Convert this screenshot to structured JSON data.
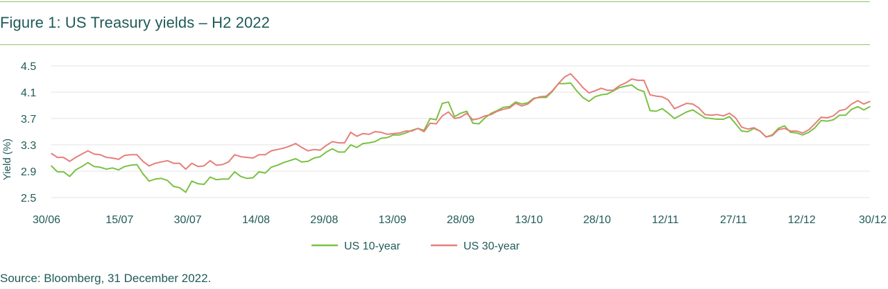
{
  "title": "Figure 1: US Treasury yields – H2 2022",
  "source": "Source: Bloomberg, 31 December 2022.",
  "chart_data": {
    "type": "line",
    "ylabel": "Yield (%)",
    "ylim": [
      2.5,
      4.5
    ],
    "yticks": [
      "4.5",
      "4.1",
      "3.7",
      "3.3",
      "2.9",
      "2.5"
    ],
    "xtick_labels": [
      "30/06",
      "15/07",
      "30/07",
      "14/08",
      "29/08",
      "13/09",
      "28/09",
      "13/10",
      "28/10",
      "12/11",
      "27/11",
      "12/12",
      "30/12"
    ],
    "grid": true,
    "legend_position": "bottom-center",
    "series": [
      {
        "name": "US 10-year",
        "color": "#7ac142",
        "values": [
          2.98,
          2.89,
          2.89,
          2.82,
          2.92,
          2.97,
          3.03,
          2.97,
          2.96,
          2.93,
          2.95,
          2.92,
          2.97,
          2.99,
          3.0,
          2.86,
          2.75,
          2.78,
          2.79,
          2.76,
          2.67,
          2.65,
          2.58,
          2.75,
          2.71,
          2.7,
          2.81,
          2.77,
          2.78,
          2.78,
          2.89,
          2.82,
          2.79,
          2.8,
          2.89,
          2.87,
          2.96,
          2.99,
          3.03,
          3.06,
          3.09,
          3.04,
          3.05,
          3.1,
          3.12,
          3.19,
          3.24,
          3.19,
          3.19,
          3.3,
          3.26,
          3.32,
          3.33,
          3.35,
          3.4,
          3.41,
          3.45,
          3.45,
          3.48,
          3.52,
          3.55,
          3.52,
          3.7,
          3.68,
          3.93,
          3.95,
          3.73,
          3.78,
          3.81,
          3.63,
          3.62,
          3.71,
          3.78,
          3.82,
          3.87,
          3.88,
          3.95,
          3.92,
          3.94,
          4.01,
          4.02,
          4.02,
          4.11,
          4.23,
          4.23,
          4.24,
          4.12,
          4.02,
          3.96,
          4.03,
          4.06,
          4.07,
          4.12,
          4.17,
          4.19,
          4.21,
          4.14,
          4.11,
          3.82,
          3.81,
          3.85,
          3.78,
          3.7,
          3.75,
          3.8,
          3.83,
          3.77,
          3.71,
          3.7,
          3.69,
          3.69,
          3.73,
          3.62,
          3.51,
          3.5,
          3.55,
          3.51,
          3.42,
          3.45,
          3.55,
          3.59,
          3.49,
          3.48,
          3.45,
          3.49,
          3.56,
          3.67,
          3.66,
          3.68,
          3.75,
          3.75,
          3.84,
          3.88,
          3.83,
          3.88
        ]
      },
      {
        "name": "US 30-year",
        "color": "#e57f7a",
        "values": [
          3.17,
          3.11,
          3.11,
          3.05,
          3.11,
          3.16,
          3.21,
          3.16,
          3.15,
          3.11,
          3.1,
          3.08,
          3.14,
          3.15,
          3.15,
          3.05,
          2.98,
          3.02,
          3.04,
          3.06,
          3.02,
          3.02,
          2.93,
          3.02,
          2.97,
          2.98,
          3.06,
          2.99,
          3.0,
          3.04,
          3.15,
          3.12,
          3.11,
          3.1,
          3.15,
          3.15,
          3.21,
          3.23,
          3.25,
          3.28,
          3.32,
          3.26,
          3.21,
          3.23,
          3.22,
          3.29,
          3.35,
          3.33,
          3.33,
          3.49,
          3.43,
          3.47,
          3.46,
          3.5,
          3.49,
          3.46,
          3.47,
          3.48,
          3.51,
          3.51,
          3.55,
          3.5,
          3.63,
          3.62,
          3.74,
          3.8,
          3.7,
          3.72,
          3.78,
          3.68,
          3.7,
          3.74,
          3.76,
          3.81,
          3.84,
          3.86,
          3.93,
          3.89,
          3.92,
          4.0,
          4.03,
          4.04,
          4.12,
          4.23,
          4.33,
          4.38,
          4.28,
          4.17,
          4.09,
          4.12,
          4.16,
          4.13,
          4.13,
          4.2,
          4.24,
          4.3,
          4.28,
          4.28,
          4.06,
          4.04,
          4.03,
          3.98,
          3.85,
          3.89,
          3.93,
          3.92,
          3.86,
          3.76,
          3.75,
          3.76,
          3.74,
          3.78,
          3.71,
          3.57,
          3.54,
          3.56,
          3.51,
          3.42,
          3.44,
          3.53,
          3.55,
          3.51,
          3.51,
          3.48,
          3.53,
          3.62,
          3.72,
          3.71,
          3.74,
          3.82,
          3.84,
          3.92,
          3.97,
          3.92,
          3.96
        ]
      }
    ]
  }
}
